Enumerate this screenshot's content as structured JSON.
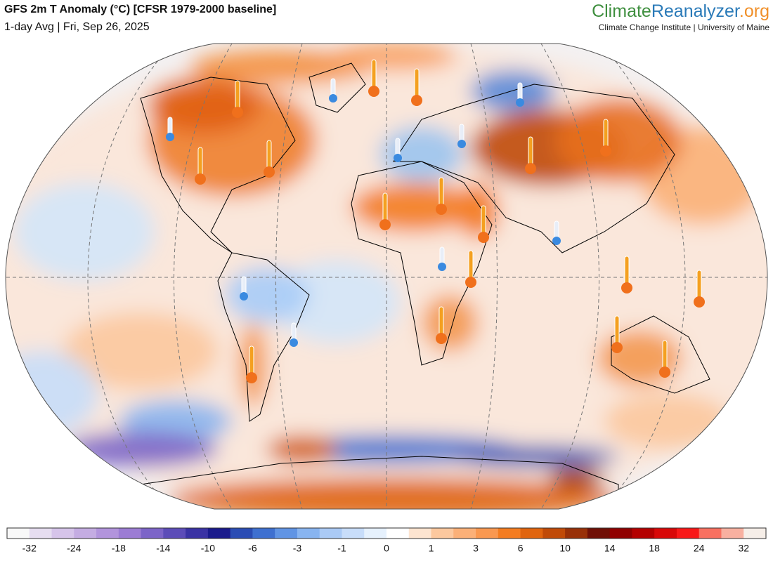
{
  "header": {
    "title": "GFS 2m T Anomaly (°C) [CFSR 1979-2000 baseline]",
    "subtitle": "1-day Avg | Fri, Sep 26, 2025"
  },
  "brand": {
    "part1": "Climate",
    "part2": "Reanalyzer",
    "part3": ".org",
    "tagline": "Climate Change Institute | University of Maine"
  },
  "colorbar": {
    "colors": [
      "#f8f8f8",
      "#e6ddf0",
      "#d6c4ea",
      "#c4ace2",
      "#b294dc",
      "#9c7cd4",
      "#7c64c8",
      "#5c4cb8",
      "#3a32a4",
      "#1a1a8c",
      "#2a4cb4",
      "#3e70d0",
      "#6094e4",
      "#88b4f0",
      "#aacaf6",
      "#c8ddfa",
      "#e6f1fd",
      "#ffffff",
      "#fde4d0",
      "#fcc89e",
      "#fbb078",
      "#f99850",
      "#f47c20",
      "#e0640e",
      "#c04a08",
      "#983008",
      "#701006",
      "#900000",
      "#b40000",
      "#d80808",
      "#f81818",
      "#f87060",
      "#f8b0a0",
      "#f6eee8"
    ],
    "ticks": [
      -32,
      -24,
      -18,
      -14,
      -10,
      -6,
      -3,
      -1,
      0,
      1,
      3,
      6,
      10,
      14,
      18,
      24,
      32
    ]
  }
}
